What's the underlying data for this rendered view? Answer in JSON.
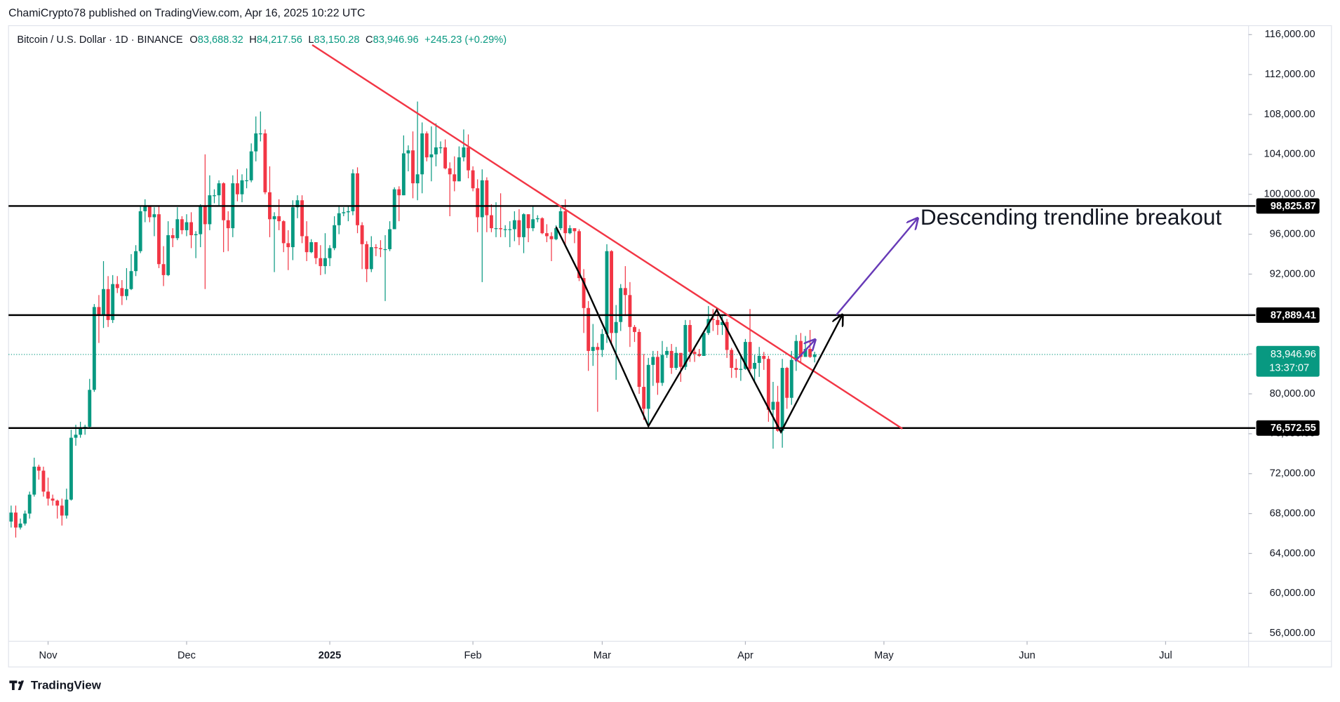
{
  "chart_data": {
    "type": "candlestick",
    "header": "ChamiCrypto78 published on TradingView.com, Apr 16, 2025 10:22 UTC",
    "symbol": "Bitcoin / U.S. Dollar · 1D · BINANCE",
    "legend": [
      {
        "key": "O",
        "value": "83,688.32"
      },
      {
        "key": "H",
        "value": "84,217.56"
      },
      {
        "key": "L",
        "value": "83,150.28"
      },
      {
        "key": "C",
        "value": "83,946.96"
      }
    ],
    "change": "+245.23 (+0.29%)",
    "colors": {
      "up": "#089981",
      "down": "#f23645"
    },
    "open": [
      67200,
      68100,
      66600,
      67000,
      68000,
      69900,
      72700,
      72300,
      70200,
      69500,
      69300,
      68800,
      67800,
      69400,
      75600,
      75900,
      76500,
      76700,
      80400,
      88700,
      87900,
      90500,
      87400,
      91000,
      90600,
      89800,
      90500,
      92300,
      94300,
      98300,
      98900,
      97700,
      98000,
      93000,
      91900,
      95900,
      95600,
      97500,
      96400,
      97200,
      95900,
      96000,
      98800,
      97000,
      99900,
      99900,
      101100,
      97400,
      96600,
      101100,
      100000,
      101400,
      101400,
      104300,
      106100,
      106100,
      100200,
      97500,
      97800,
      97300,
      95100,
      94700,
      98700,
      99400,
      95800,
      94200,
      95200,
      93600,
      92800,
      93600,
      94600,
      96900,
      98100,
      98200,
      98300,
      102100,
      96900,
      95000,
      92500,
      94700,
      94600,
      94500,
      94500,
      96500,
      100500,
      99900,
      104100,
      104400,
      101100,
      102000,
      106100,
      103700,
      104000,
      104700,
      104700,
      102600,
      102000,
      101300,
      103700,
      104700,
      102400,
      100600,
      97700,
      101400,
      97900,
      96600,
      96600,
      96500,
      96500,
      96500,
      97400,
      95700,
      98000,
      96600,
      97500,
      97600,
      96100,
      95800,
      95500,
      96600,
      98300,
      96100,
      96600,
      96300,
      91600,
      88600,
      84300,
      84700,
      84400,
      86000,
      94300,
      86100,
      87200,
      90600,
      89900,
      86700,
      86200,
      80700,
      78500,
      82900,
      83700,
      81100,
      83900,
      84300,
      82600,
      84100,
      82700,
      86900,
      84200,
      84000,
      83800,
      86100,
      87500,
      87400,
      86900,
      87200,
      84400,
      82600,
      82400,
      82500,
      85200,
      82500,
      83100,
      83800,
      83500,
      78400,
      79200,
      76300,
      82600,
      79600,
      83400,
      85300,
      83700,
      84500,
      83688.32
    ],
    "high": [
      68800,
      68800,
      67500,
      68300,
      70200,
      73600,
      72900,
      72700,
      71600,
      69900,
      69400,
      69500,
      70500,
      76400,
      76900,
      77200,
      76900,
      81500,
      89000,
      89900,
      93300,
      91800,
      91900,
      91800,
      91400,
      92600,
      94000,
      94900,
      98800,
      99500,
      98800,
      98700,
      98900,
      94800,
      97300,
      96600,
      98700,
      97800,
      98000,
      98200,
      96300,
      99000,
      104000,
      101900,
      100500,
      101400,
      101200,
      98300,
      101900,
      102500,
      102000,
      102600,
      105100,
      107800,
      108300,
      106500,
      102800,
      98200,
      99500,
      97400,
      96400,
      99400,
      99900,
      99900,
      97300,
      95500,
      95200,
      94900,
      96100,
      94900,
      97800,
      98900,
      98700,
      98800,
      102500,
      102700,
      97200,
      95300,
      95800,
      95000,
      95400,
      95900,
      97300,
      100700,
      100800,
      105900,
      104900,
      106300,
      109300,
      107200,
      106300,
      106800,
      107100,
      105300,
      105500,
      103200,
      103800,
      104800,
      106500,
      106000,
      102800,
      101500,
      102500,
      101700,
      99000,
      99200,
      100100,
      96900,
      97300,
      98300,
      98500,
      98100,
      98000,
      98800,
      97900,
      97700,
      97000,
      96200,
      96900,
      98700,
      99500,
      96900,
      96600,
      96500,
      92500,
      89300,
      87000,
      85100,
      86500,
      95000,
      94400,
      88900,
      91000,
      92800,
      91200,
      86900,
      86500,
      84000,
      83600,
      84300,
      84300,
      85300,
      84700,
      85000,
      84700,
      84100,
      87400,
      87400,
      84700,
      84500,
      86100,
      88800,
      88500,
      88300,
      87800,
      87500,
      84600,
      83500,
      83900,
      85500,
      88500,
      83900,
      84700,
      84200,
      83800,
      81200,
      80800,
      83500,
      82700,
      84300,
      85900,
      86100,
      85800,
      86400,
      84217.56
    ],
    "low": [
      66600,
      65600,
      66400,
      66800,
      67500,
      69700,
      71400,
      69700,
      68800,
      68800,
      67500,
      66800,
      67500,
      69300,
      74800,
      75600,
      75900,
      76500,
      80200,
      85100,
      86600,
      86700,
      87100,
      90100,
      88900,
      89400,
      90400,
      91800,
      94100,
      97200,
      97200,
      95800,
      92600,
      90800,
      91800,
      94700,
      95400,
      96000,
      95800,
      94600,
      93600,
      94700,
      90500,
      96400,
      99100,
      98800,
      94200,
      94300,
      95700,
      99300,
      99200,
      100600,
      101200,
      103300,
      105300,
      100000,
      95700,
      92200,
      96400,
      94200,
      92400,
      93400,
      97600,
      95100,
      93300,
      94100,
      93000,
      91900,
      92000,
      92800,
      94400,
      96000,
      97800,
      97300,
      97900,
      96100,
      92500,
      91200,
      92200,
      93800,
      93700,
      89300,
      94300,
      96500,
      97300,
      99900,
      102300,
      99600,
      99400,
      100100,
      103300,
      101300,
      102800,
      104100,
      102500,
      97800,
      100300,
      101300,
      103300,
      101600,
      100300,
      96200,
      91200,
      96200,
      96200,
      95700,
      95700,
      95700,
      94700,
      95300,
      94900,
      94100,
      95200,
      96300,
      97200,
      96000,
      95200,
      93300,
      95400,
      96400,
      94900,
      96000,
      95100,
      91300,
      86100,
      82300,
      82800,
      78200,
      83700,
      85100,
      85100,
      81400,
      86300,
      87800,
      84700,
      85200,
      80000,
      77400,
      76600,
      80800,
      79900,
      80800,
      83600,
      82000,
      82400,
      81200,
      82400,
      83200,
      83200,
      83700,
      83800,
      85900,
      86300,
      85900,
      85900,
      83600,
      81600,
      81600,
      81300,
      82400,
      82300,
      81200,
      81700,
      82400,
      77200,
      74500,
      76200,
      74600,
      78500,
      78900,
      82300,
      83100,
      83700,
      83600,
      83150.28
    ],
    "close": [
      68100,
      66600,
      67000,
      68000,
      69900,
      72700,
      72300,
      70200,
      69500,
      69300,
      68800,
      67800,
      69400,
      75600,
      75900,
      76500,
      76700,
      80400,
      88700,
      87900,
      90500,
      87400,
      91000,
      90600,
      89800,
      90500,
      92300,
      94300,
      98300,
      98900,
      97700,
      98000,
      93000,
      91900,
      95900,
      95600,
      97500,
      96400,
      97200,
      95900,
      96000,
      98800,
      97000,
      99900,
      99900,
      101100,
      97400,
      96600,
      101100,
      100000,
      101400,
      101400,
      104300,
      106100,
      106100,
      100200,
      97500,
      97800,
      97300,
      95100,
      94700,
      98700,
      99400,
      95800,
      94200,
      95200,
      93600,
      92800,
      93600,
      94600,
      96900,
      98100,
      98200,
      98300,
      102100,
      96900,
      95000,
      92500,
      94700,
      94600,
      94500,
      94500,
      96500,
      100500,
      99900,
      104100,
      104400,
      101100,
      102000,
      106100,
      103700,
      104000,
      104700,
      104700,
      102600,
      102000,
      101300,
      103700,
      104700,
      102400,
      100600,
      97700,
      101400,
      97900,
      96600,
      96600,
      96500,
      96500,
      96500,
      97400,
      95700,
      98000,
      96600,
      97500,
      97600,
      96100,
      95800,
      95500,
      96600,
      98300,
      96100,
      96600,
      96300,
      91600,
      88600,
      84300,
      84700,
      84400,
      86000,
      94300,
      86100,
      87200,
      90600,
      89900,
      86700,
      86200,
      80700,
      78500,
      82900,
      83700,
      81100,
      83900,
      84300,
      82600,
      84100,
      82700,
      86900,
      84200,
      84000,
      83800,
      86100,
      87500,
      87400,
      86900,
      87200,
      84400,
      82600,
      82400,
      82500,
      85200,
      82500,
      83100,
      83800,
      83500,
      78400,
      79200,
      76300,
      82600,
      79600,
      83400,
      85300,
      83700,
      84500,
      83700,
      83946.96
    ],
    "ylim": [
      55200,
      116900
    ],
    "yticks": [
      {
        "value": 56000,
        "label": "56,000.00"
      },
      {
        "value": 60000,
        "label": "60,000.00"
      },
      {
        "value": 64000,
        "label": "64,000.00"
      },
      {
        "value": 68000,
        "label": "68,000.00"
      },
      {
        "value": 72000,
        "label": "72,000.00"
      },
      {
        "value": 76000,
        "label": "76,000.00"
      },
      {
        "value": 80000,
        "label": "80,000.00"
      },
      {
        "value": 84000,
        "label": "84,000.00"
      },
      {
        "value": 88000,
        "label": "88,000.00"
      },
      {
        "value": 92000,
        "label": "92,000.00"
      },
      {
        "value": 96000,
        "label": "96,000.00"
      },
      {
        "value": 100000,
        "label": "100,000.00"
      },
      {
        "value": 104000,
        "label": "104,000.00"
      },
      {
        "value": 108000,
        "label": "108,000.00"
      },
      {
        "value": 112000,
        "label": "112,000.00"
      },
      {
        "value": 116000,
        "label": "116,000.00"
      }
    ],
    "xlim": [
      -0.56,
      267.96
    ],
    "xticks": [
      {
        "value": 8,
        "label": "Nov"
      },
      {
        "value": 38,
        "label": "Dec"
      },
      {
        "value": 69,
        "label": "2025"
      },
      {
        "value": 100,
        "label": "Feb"
      },
      {
        "value": 128,
        "label": "Mar"
      },
      {
        "value": 159,
        "label": "Apr"
      },
      {
        "value": 189,
        "label": "May"
      },
      {
        "value": 220,
        "label": "Jun"
      },
      {
        "value": 250,
        "label": "Jul"
      }
    ],
    "levels": [
      {
        "value": 98825.87,
        "label": "98,825.87"
      },
      {
        "value": 87889.41,
        "label": "87,889.41"
      },
      {
        "value": 76572.55,
        "label": "76,572.55"
      }
    ],
    "last_price": {
      "value": 83946.96,
      "label": "83,946.96",
      "countdown": "13:37:07",
      "color": "#089981"
    },
    "trendline": {
      "x": [
        65.2,
        193
      ],
      "y": [
        114970,
        76500
      ],
      "color": "#f23645"
    },
    "pattern": {
      "x": [
        118,
        124,
        138,
        152.8,
        166.7,
        180
      ],
      "y": [
        96730,
        91160,
        76770,
        88420,
        76170,
        87910
      ],
      "color": "#000000"
    },
    "arrows": [
      {
        "x": [
          178.7,
          196.3
        ],
        "y": [
          87910,
          97590
        ],
        "color": "#673ab7"
      },
      {
        "x": [
          169.8,
          174.1
        ],
        "y": [
          83280,
          85420
        ],
        "color": "#673ab7"
      }
    ],
    "annotation": "Descending trendline breakout",
    "brand": "TradingView"
  }
}
